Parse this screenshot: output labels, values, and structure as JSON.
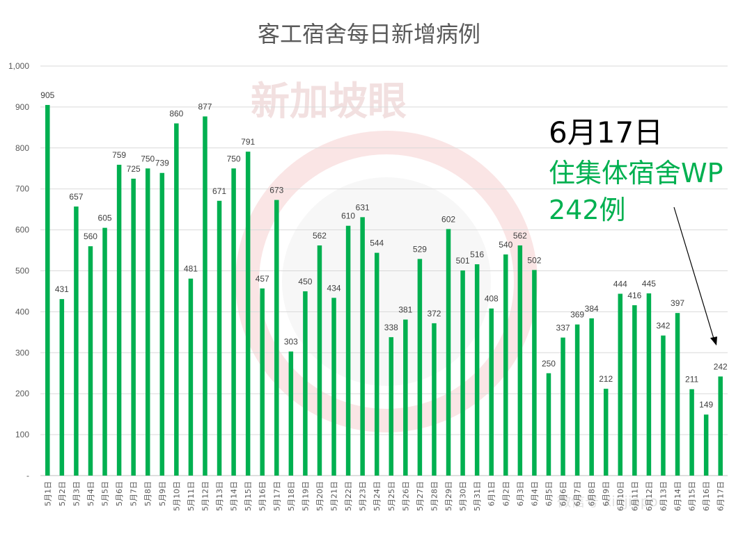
{
  "watermark": {
    "logo_text": "新加坡眼",
    "footer_text": "微信号 xinjiapo"
  },
  "annotation": {
    "date": "6月17日",
    "line1": "住集体宿舍WP",
    "line2": "242例"
  },
  "colors": {
    "bar": "#00b050",
    "grid": "#d9d9d9",
    "annotation_green": "#00b050",
    "watermark": "#f3c9c9"
  },
  "chart_data": {
    "type": "bar",
    "title": "客工宿舍每日新增病例",
    "xlabel": "",
    "ylabel": "",
    "ylim": [
      0,
      1000
    ],
    "yticks": [
      0,
      100,
      200,
      300,
      400,
      500,
      600,
      700,
      800,
      900,
      1000
    ],
    "ytick_labels": [
      "-",
      "100",
      "200",
      "300",
      "400",
      "500",
      "600",
      "700",
      "800",
      "900",
      "1,000"
    ],
    "grid": true,
    "legend": "none",
    "categories": [
      "5月1日",
      "5月2日",
      "5月3日",
      "5月4日",
      "5月5日",
      "5月6日",
      "5月7日",
      "5月8日",
      "5月9日",
      "5月10日",
      "5月11日",
      "5月12日",
      "5月13日",
      "5月14日",
      "5月15日",
      "5月16日",
      "5月17日",
      "5月18日",
      "5月19日",
      "5月20日",
      "5月21日",
      "5月22日",
      "5月23日",
      "5月24日",
      "5月25日",
      "5月26日",
      "5月27日",
      "5月28日",
      "5月29日",
      "5月30日",
      "5月31日",
      "6月1日",
      "6月2日",
      "6月3日",
      "6月4日",
      "6月5日",
      "6月6日",
      "6月7日",
      "6月8日",
      "6月9日",
      "6月10日",
      "6月11日",
      "6月12日",
      "6月13日",
      "6月14日",
      "6月15日",
      "6月16日",
      "6月17日"
    ],
    "values": [
      905,
      431,
      657,
      560,
      605,
      759,
      725,
      750,
      739,
      860,
      481,
      877,
      671,
      750,
      791,
      457,
      673,
      303,
      450,
      562,
      434,
      610,
      631,
      544,
      338,
      381,
      529,
      372,
      602,
      501,
      516,
      408,
      540,
      562,
      502,
      250,
      337,
      369,
      384,
      212,
      444,
      416,
      445,
      342,
      397,
      211,
      149,
      242
    ]
  }
}
